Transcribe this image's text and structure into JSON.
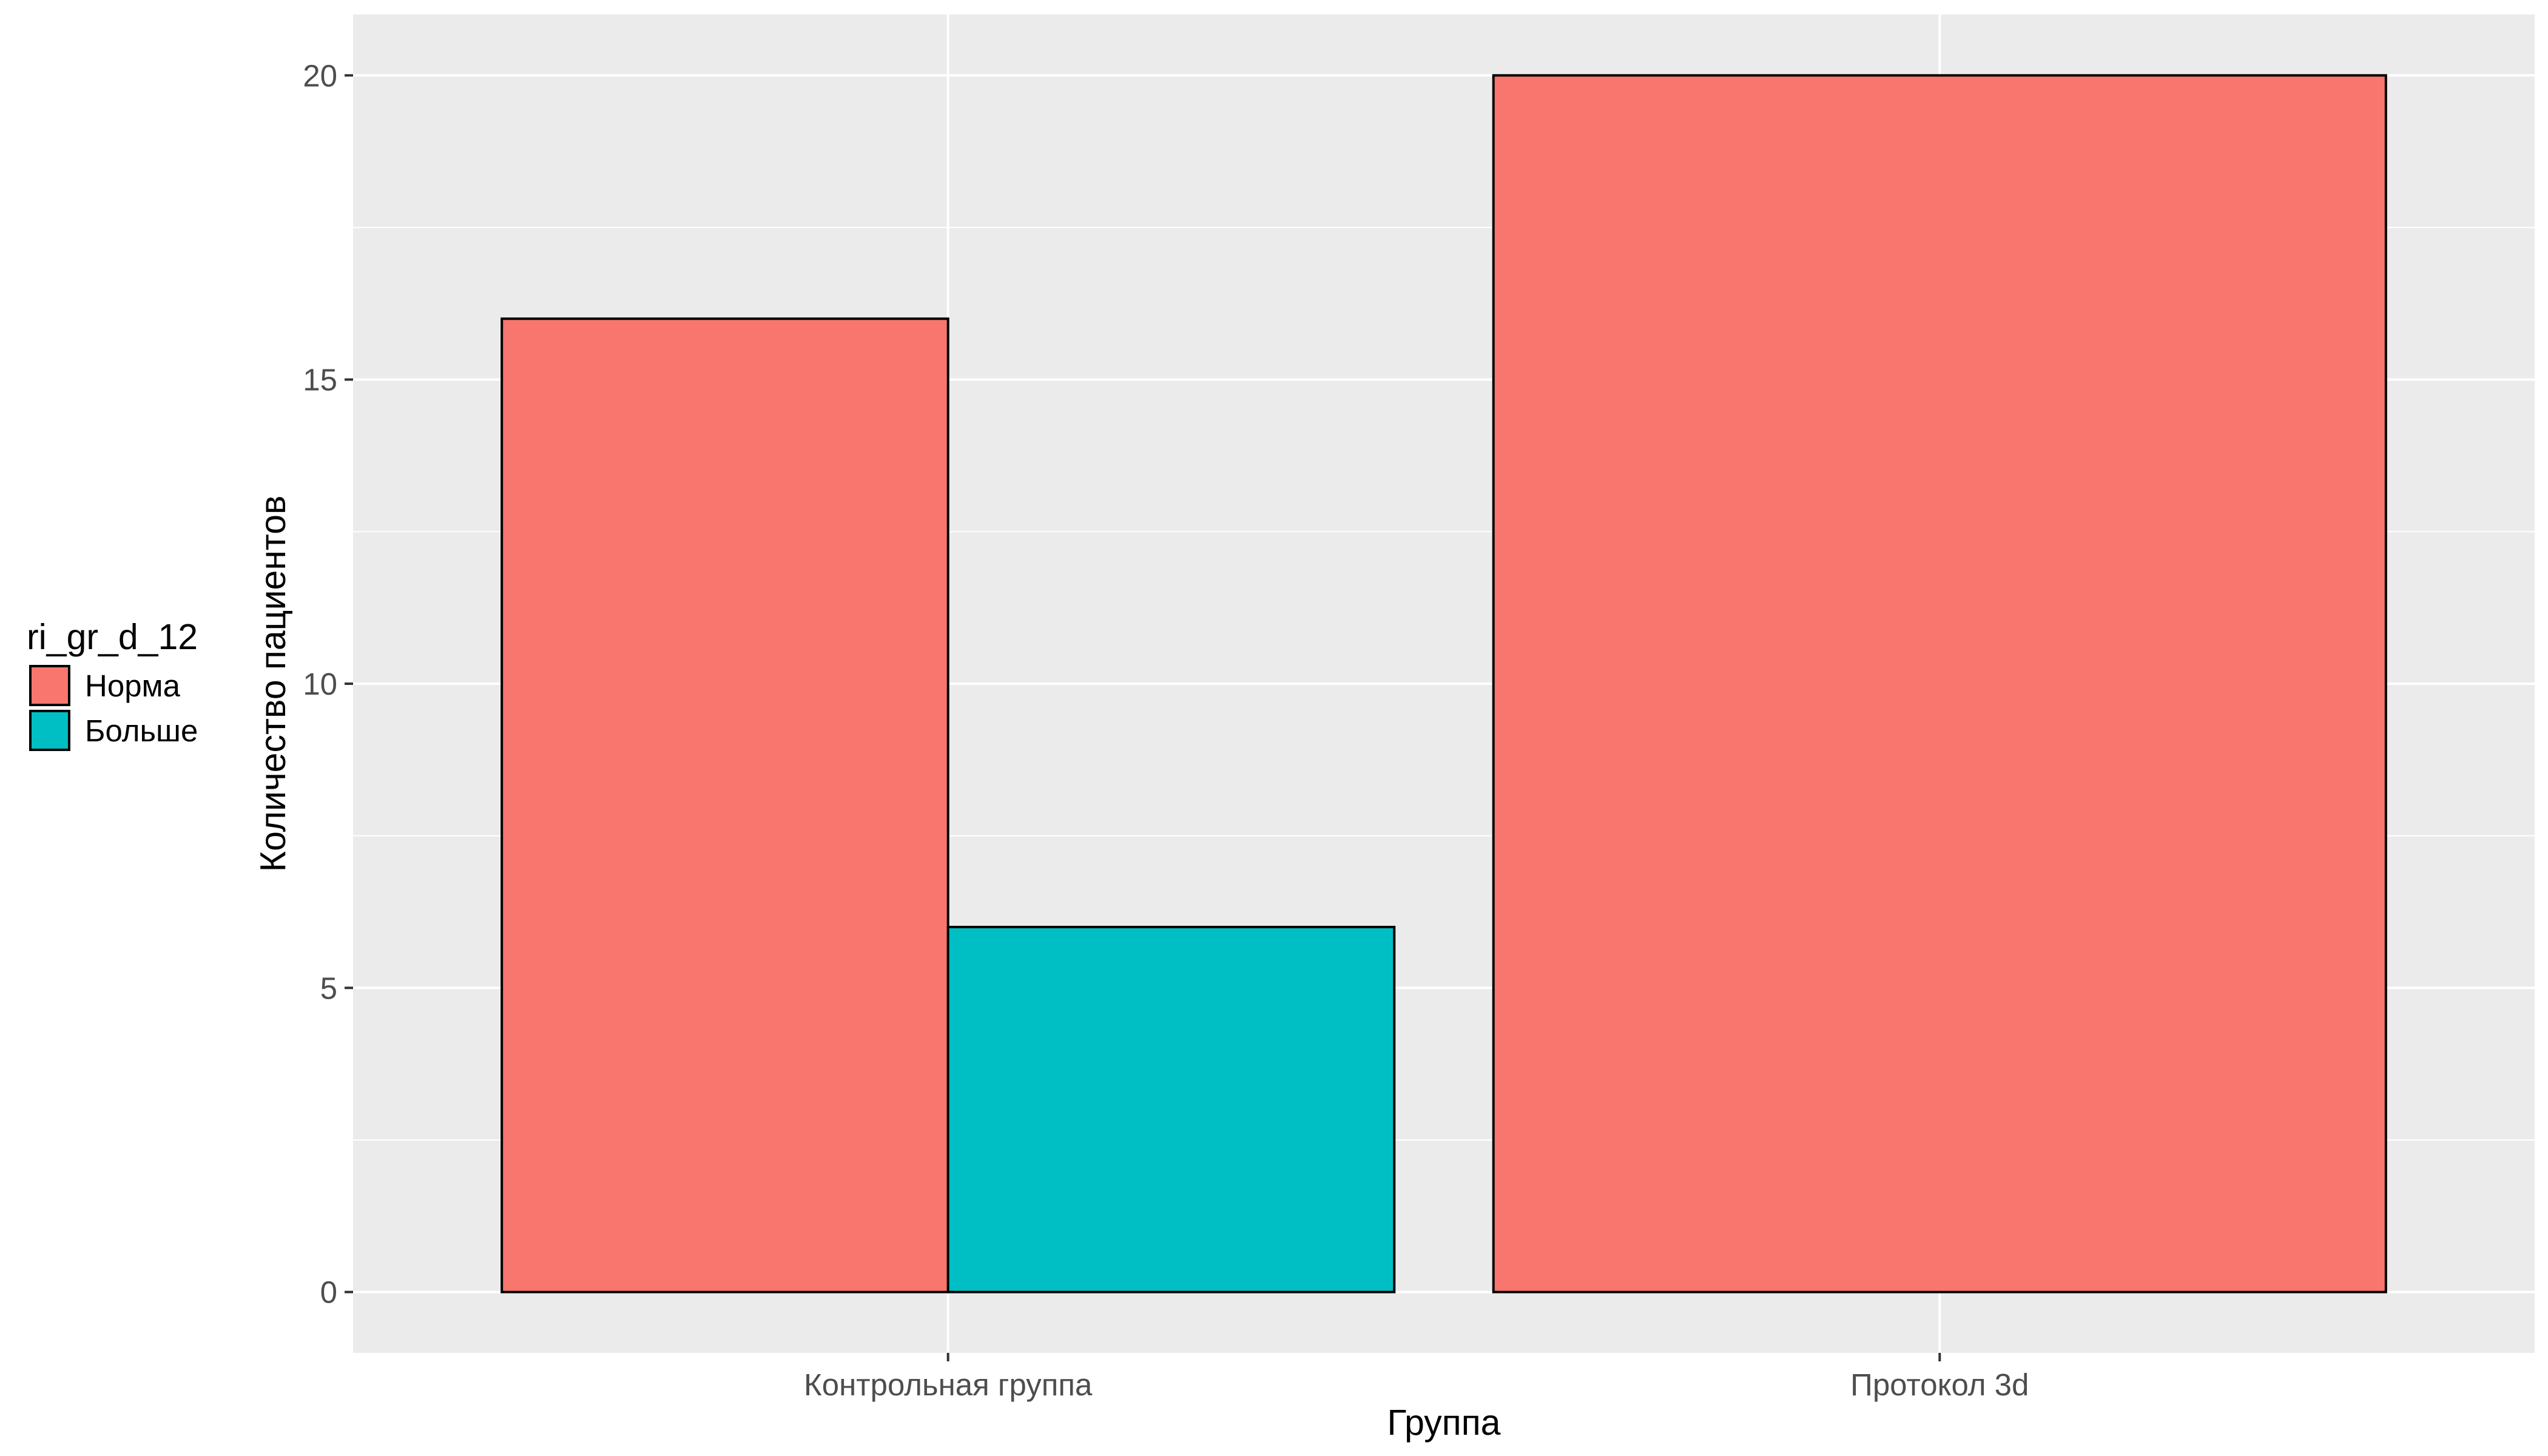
{
  "chart_data": {
    "type": "bar",
    "categories": [
      "Контрольная группа",
      "Протокол 3d"
    ],
    "series": [
      {
        "name": "Норма",
        "values": [
          16,
          20
        ],
        "color": "#F8766D"
      },
      {
        "name": "Больше",
        "values": [
          6,
          null
        ],
        "color": "#00BFC4"
      }
    ],
    "xlabel": "Группа",
    "ylabel": "Количество пациентов",
    "ylim": [
      -1,
      21
    ],
    "yticks": [
      0,
      5,
      10,
      15,
      20
    ],
    "grid": true,
    "legend": {
      "title": "ri_gr_d_12",
      "placement": "left"
    },
    "panel_background": "#EBEBEB",
    "bar_outline": "#000000"
  }
}
